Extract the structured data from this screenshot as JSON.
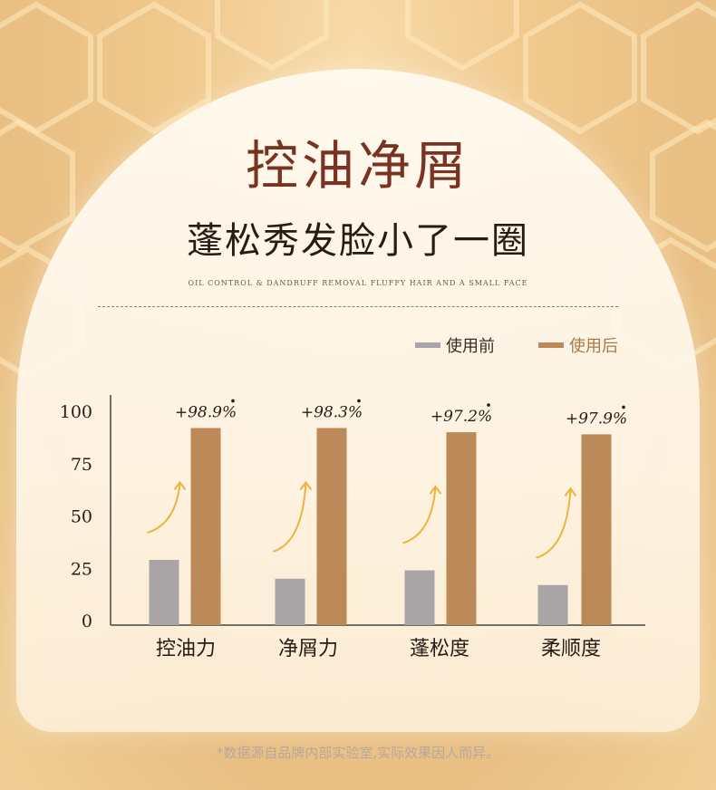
{
  "header": {
    "title": "控油净屑",
    "subtitle": "蓬松秀发脸小了一圈",
    "caption": "OIL CONTROL & DANDRUFF REMOVAL FLUFFY HAIR AND A SMALL FACE"
  },
  "legend": {
    "before": "使用前",
    "after": "使用后"
  },
  "colors": {
    "before": "#a7a5a6",
    "after": "#bc8a58",
    "arrow": "#f0b23a"
  },
  "chart_data": {
    "type": "bar",
    "categories": [
      "控油力",
      "净屑力",
      "蓬松度",
      "柔顺度"
    ],
    "series": [
      {
        "name": "使用前",
        "values": [
          29,
          20,
          24,
          17
        ]
      },
      {
        "name": "使用后",
        "values": [
          92,
          92,
          90,
          89
        ]
      }
    ],
    "annotations": [
      "+98.9%",
      "+98.3%",
      "+97.2%",
      "+97.9%"
    ],
    "y_ticks": [
      "0",
      "25",
      "50",
      "75",
      "100"
    ],
    "ylim": [
      0,
      100
    ],
    "grid": false
  },
  "footnote": "*数据源自品牌内部实验室,实际效果因人而异。"
}
